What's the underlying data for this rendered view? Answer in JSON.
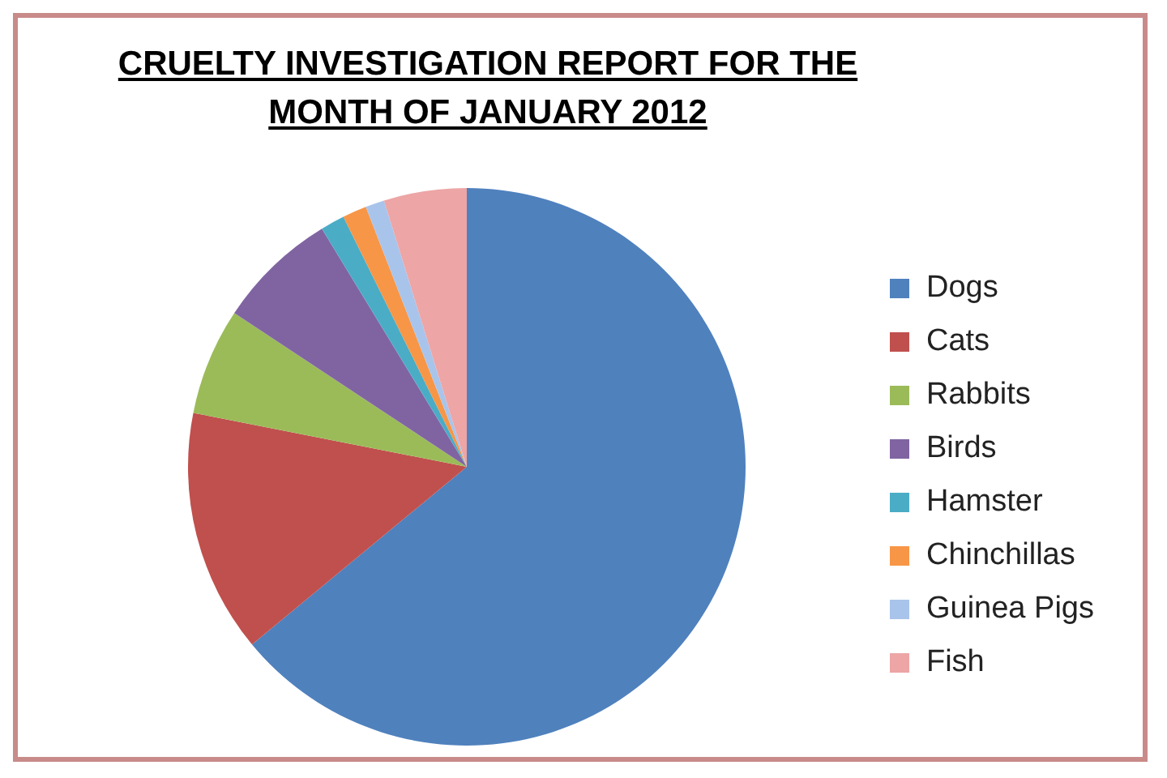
{
  "chart_data": {
    "type": "pie",
    "title": "CRUELTY INVESTIGATION REPORT FOR THE MONTH OF JANUARY 2012",
    "categories": [
      "Dogs",
      "Cats",
      "Rabbits",
      "Birds",
      "Hamster",
      "Chinchillas",
      "Guinea Pigs",
      "Fish"
    ],
    "values": [
      64.0,
      14.1,
      6.2,
      7.0,
      1.4,
      1.4,
      1.1,
      4.8
    ],
    "colors": [
      "#4f81bd",
      "#c0504d",
      "#9bbb59",
      "#8064a2",
      "#4bacc6",
      "#f79646",
      "#a9c4eb",
      "#eda5a5"
    ],
    "legend": "right"
  }
}
